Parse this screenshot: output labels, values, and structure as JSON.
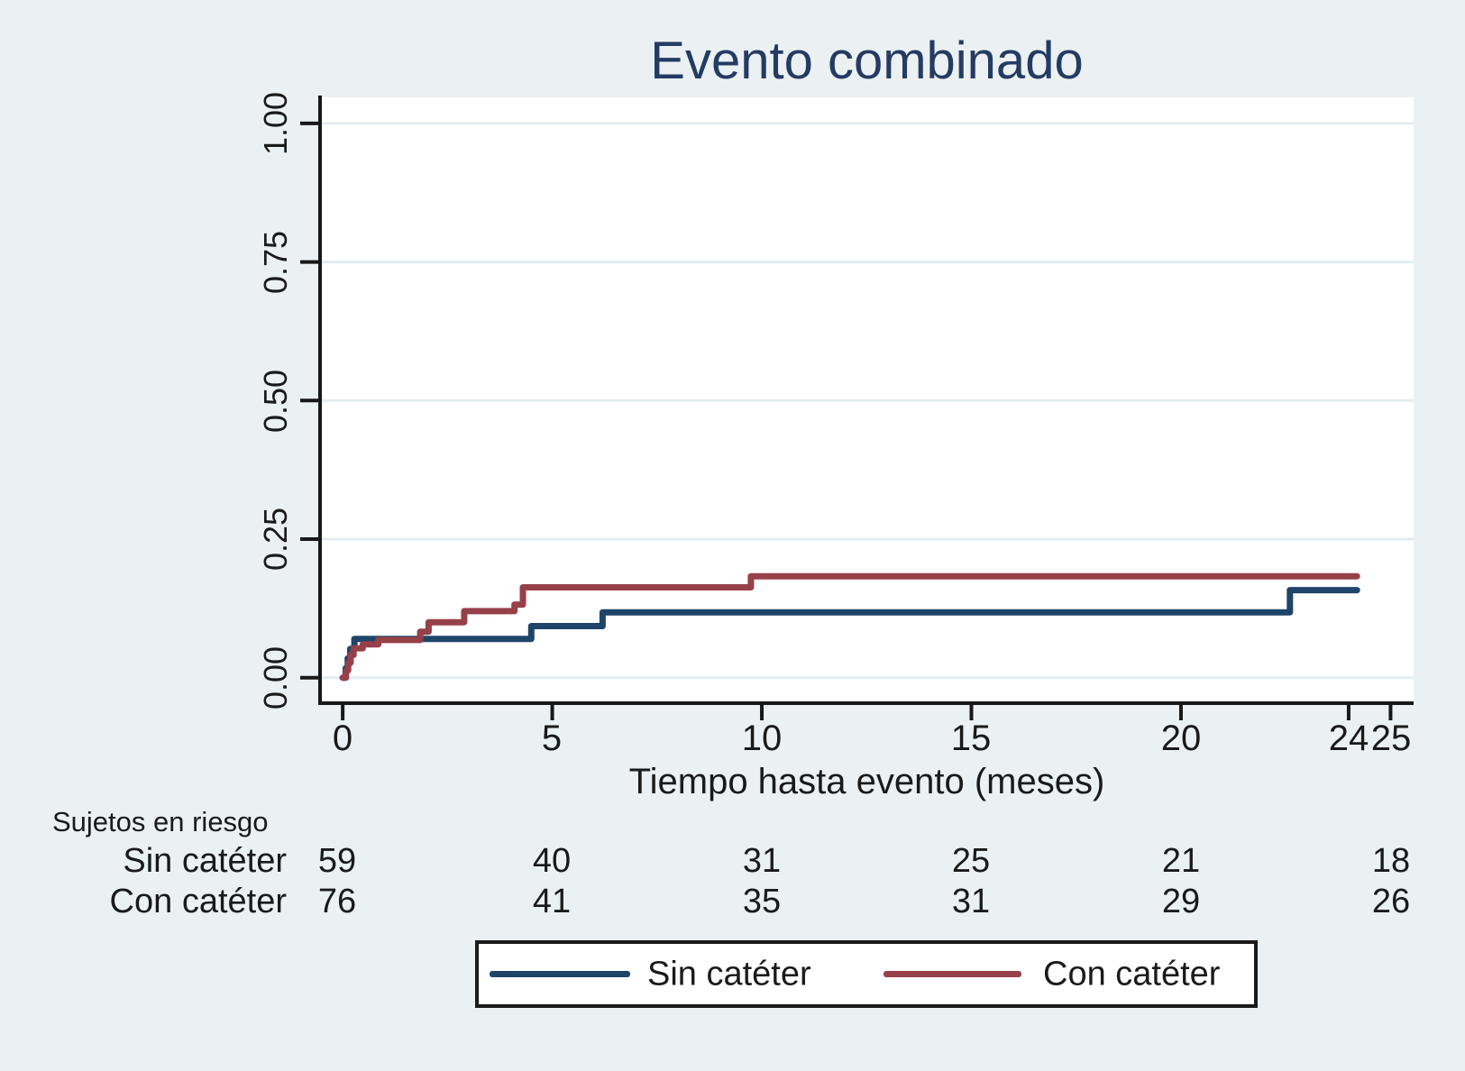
{
  "title": "Evento combinado",
  "x_axis": {
    "label": "Tiempo hasta evento (meses)",
    "tick_labels": [
      "0",
      "5",
      "10",
      "15",
      "20",
      "24",
      "25"
    ],
    "tick_values": [
      0,
      5,
      10,
      15,
      20,
      24,
      25
    ]
  },
  "y_axis": {
    "tick_labels": [
      "0.00",
      "0.25",
      "0.50",
      "0.75",
      "1.00"
    ],
    "tick_values": [
      0,
      0.25,
      0.5,
      0.75,
      1.0
    ]
  },
  "risk_table": {
    "heading": "Sujetos en riesgo",
    "columns_at_months": [
      0,
      5,
      10,
      15,
      20,
      25
    ],
    "rows": [
      {
        "label": "Sin catéter",
        "counts": [
          "59",
          "40",
          "31",
          "25",
          "21",
          "18"
        ]
      },
      {
        "label": "Con catéter",
        "counts": [
          "76",
          "41",
          "35",
          "31",
          "29",
          "26"
        ]
      }
    ]
  },
  "legend": {
    "items": [
      {
        "label": "Sin catéter",
        "color": "#1E4569"
      },
      {
        "label": "Con catéter",
        "color": "#964049"
      }
    ]
  },
  "colors": {
    "background": "#EBF1F2",
    "plot_background": "#FFFFFF",
    "grid": "#E3EDF0",
    "axis": "#181818",
    "title": "#243B63",
    "sin_cateter_line": "#1E4569",
    "con_cateter_line": "#964049"
  },
  "chart_data": {
    "type": "line",
    "subtype": "kaplan-meier-step",
    "title": "Evento combinado",
    "xlabel": "Tiempo hasta evento (meses)",
    "ylabel": "",
    "xlim": [
      -0.54,
      25.55
    ],
    "ylim": [
      -0.046,
      1.047
    ],
    "x_ticks": [
      0,
      5,
      10,
      15,
      20,
      24,
      25
    ],
    "y_ticks": [
      0,
      0.25,
      0.5,
      0.75,
      1.0
    ],
    "grid": "horizontal",
    "legend_position": "bottom",
    "series": [
      {
        "name": "Sin catéter",
        "color": "#1E4569",
        "points": [
          [
            0,
            0
          ],
          [
            0.07,
            0.017
          ],
          [
            0.12,
            0.035
          ],
          [
            0.18,
            0.052
          ],
          [
            0.28,
            0.07
          ],
          [
            4.5,
            0.093
          ],
          [
            6.2,
            0.118
          ],
          [
            22.6,
            0.158
          ],
          [
            24.2,
            0.158
          ]
        ]
      },
      {
        "name": "Con catéter",
        "color": "#964049",
        "points": [
          [
            0,
            0
          ],
          [
            0.08,
            0.013
          ],
          [
            0.13,
            0.027
          ],
          [
            0.19,
            0.041
          ],
          [
            0.26,
            0.053
          ],
          [
            0.48,
            0.06
          ],
          [
            0.85,
            0.068
          ],
          [
            1.85,
            0.083
          ],
          [
            2.05,
            0.1
          ],
          [
            2.9,
            0.12
          ],
          [
            4.1,
            0.132
          ],
          [
            4.3,
            0.163
          ],
          [
            9.74,
            0.183
          ],
          [
            24.2,
            0.183
          ]
        ]
      }
    ]
  }
}
